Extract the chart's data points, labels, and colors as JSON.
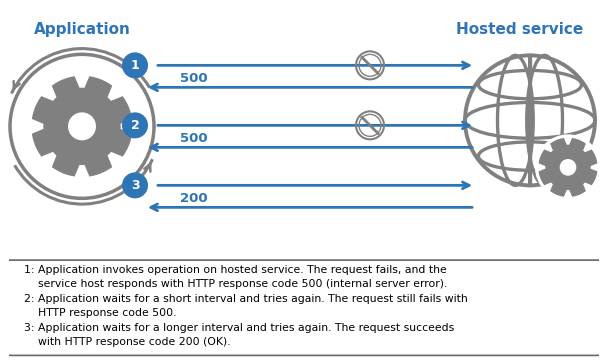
{
  "title_left": "Application",
  "title_right": "Hosted service",
  "title_color": "#2E75B6",
  "arrow_color": "#2E75B6",
  "gear_color": "#808080",
  "background_color": "#ffffff",
  "rows": [
    {
      "label": "1",
      "blocked": true,
      "return_code": "500"
    },
    {
      "label": "2",
      "blocked": true,
      "return_code": "500"
    },
    {
      "label": "3",
      "blocked": false,
      "return_code": "200"
    }
  ],
  "legend_lines": [
    "1: Application invokes operation on hosted service. The request fails, and the",
    "    service host responds with HTTP response code 500 (internal server error).",
    "2: Application waits for a short interval and tries again. The request still fails with",
    "    HTTP response code 500.",
    "3: Application waits for a longer interval and tries again. The request succeeds",
    "    with HTTP response code 200 (OK)."
  ]
}
